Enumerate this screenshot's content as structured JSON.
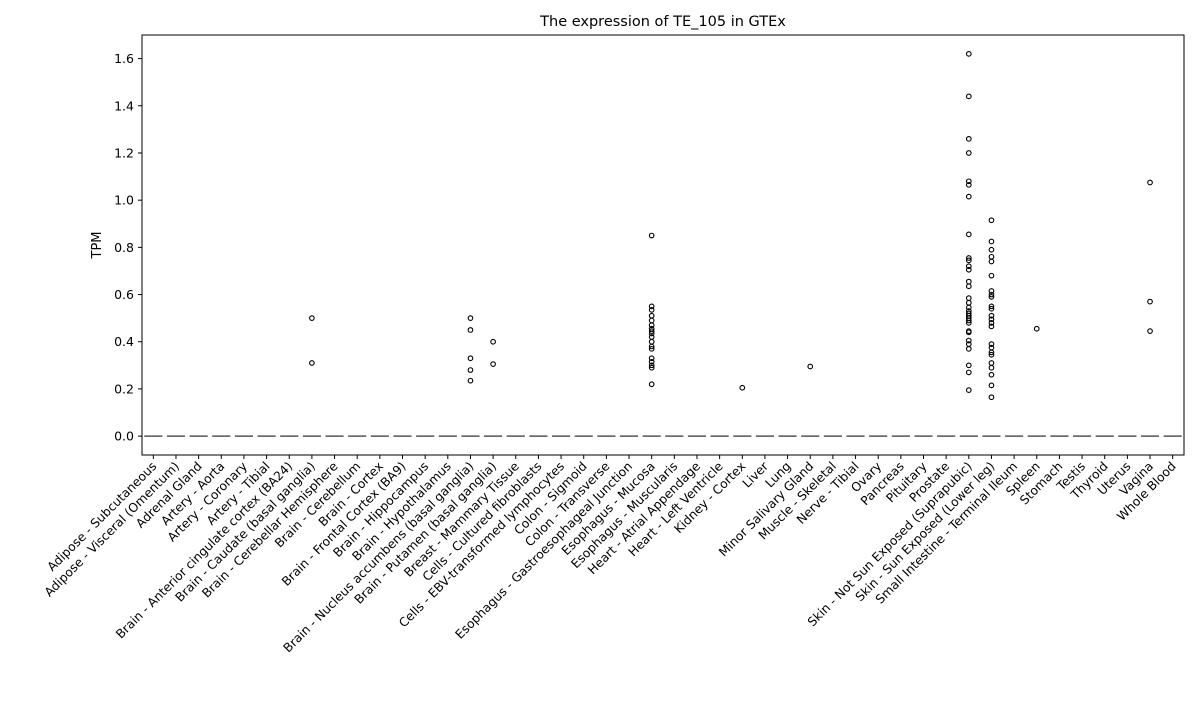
{
  "chart_data": {
    "type": "box",
    "title": "The expression of TE_105 in GTEx",
    "xlabel": "",
    "ylabel": "TPM",
    "ylim": [
      -0.08,
      1.7
    ],
    "yticks": [
      0.0,
      0.2,
      0.4,
      0.6,
      0.8,
      1.0,
      1.2,
      1.4,
      1.6
    ],
    "ytick_labels": [
      "0.0",
      "0.2",
      "0.4",
      "0.6",
      "0.8",
      "1.0",
      "1.2",
      "1.4",
      "1.6"
    ],
    "grid": false,
    "legend": "none",
    "colors": {
      "median_line": "#555555",
      "outlier_stroke": "#000000"
    },
    "categories": [
      "Adipose - Subcutaneous",
      "Adipose - Visceral (Omentum)",
      "Adrenal Gland",
      "Artery - Aorta",
      "Artery - Coronary",
      "Artery - Tibial",
      "Brain - Anterior cingulate cortex (BA24)",
      "Brain - Caudate (basal ganglia)",
      "Brain - Cerebellar Hemisphere",
      "Brain - Cerebellum",
      "Brain - Cortex",
      "Brain - Frontal Cortex (BA9)",
      "Brain - Hippocampus",
      "Brain - Hypothalamus",
      "Brain - Nucleus accumbens (basal ganglia)",
      "Brain - Putamen (basal ganglia)",
      "Breast - Mammary Tissue",
      "Cells - Cultured fibroblasts",
      "Cells - EBV-transformed lymphocytes",
      "Colon - Sigmoid",
      "Colon - Transverse",
      "Esophagus - Gastroesophageal Junction",
      "Esophagus - Mucosa",
      "Esophagus - Muscularis",
      "Heart - Atrial Appendage",
      "Heart - Left Ventricle",
      "Kidney - Cortex",
      "Liver",
      "Lung",
      "Minor Salivary Gland",
      "Muscle - Skeletal",
      "Nerve - Tibial",
      "Ovary",
      "Pancreas",
      "Pituitary",
      "Prostate",
      "Skin - Not Sun Exposed (Suprapubic)",
      "Skin - Sun Exposed (Lower leg)",
      "Small Intestine - Terminal Ileum",
      "Spleen",
      "Stomach",
      "Testis",
      "Thyroid",
      "Uterus",
      "Vagina",
      "Whole Blood"
    ],
    "medians": [
      0,
      0,
      0,
      0,
      0,
      0,
      0,
      0,
      0,
      0,
      0,
      0,
      0,
      0,
      0,
      0,
      0,
      0,
      0,
      0,
      0,
      0,
      0,
      0,
      0,
      0,
      0,
      0,
      0,
      0,
      0,
      0,
      0,
      0,
      0,
      0,
      0,
      0,
      0,
      0,
      0,
      0,
      0,
      0,
      0,
      0
    ],
    "outliers": [
      [],
      [],
      [],
      [],
      [],
      [],
      [],
      [
        0.5,
        0.31
      ],
      [],
      [],
      [],
      [],
      [],
      [],
      [
        0.5,
        0.45,
        0.33,
        0.28,
        0.235
      ],
      [
        0.4,
        0.305
      ],
      [],
      [],
      [],
      [],
      [],
      [],
      [
        0.85,
        0.55,
        0.535,
        0.51,
        0.49,
        0.47,
        0.455,
        0.445,
        0.435,
        0.42,
        0.4,
        0.38,
        0.37,
        0.33,
        0.315,
        0.3,
        0.29,
        0.22
      ],
      [],
      [],
      [],
      [
        0.205
      ],
      [],
      [],
      [
        0.295
      ],
      [],
      [],
      [],
      [],
      [],
      [],
      [
        1.62,
        1.44,
        1.26,
        1.2,
        1.08,
        1.065,
        1.015,
        0.855,
        0.755,
        0.745,
        0.72,
        0.705,
        0.655,
        0.635,
        0.585,
        0.565,
        0.545,
        0.53,
        0.52,
        0.51,
        0.5,
        0.49,
        0.48,
        0.445,
        0.44,
        0.405,
        0.39,
        0.37,
        0.3,
        0.27,
        0.195
      ],
      [
        0.915,
        0.825,
        0.79,
        0.76,
        0.74,
        0.68,
        0.615,
        0.6,
        0.59,
        0.55,
        0.54,
        0.51,
        0.495,
        0.48,
        0.465,
        0.39,
        0.375,
        0.355,
        0.345,
        0.31,
        0.29,
        0.26,
        0.215,
        0.165
      ],
      [],
      [
        0.455
      ],
      [],
      [],
      [],
      [],
      [
        1.075,
        0.57,
        0.445
      ],
      []
    ]
  }
}
